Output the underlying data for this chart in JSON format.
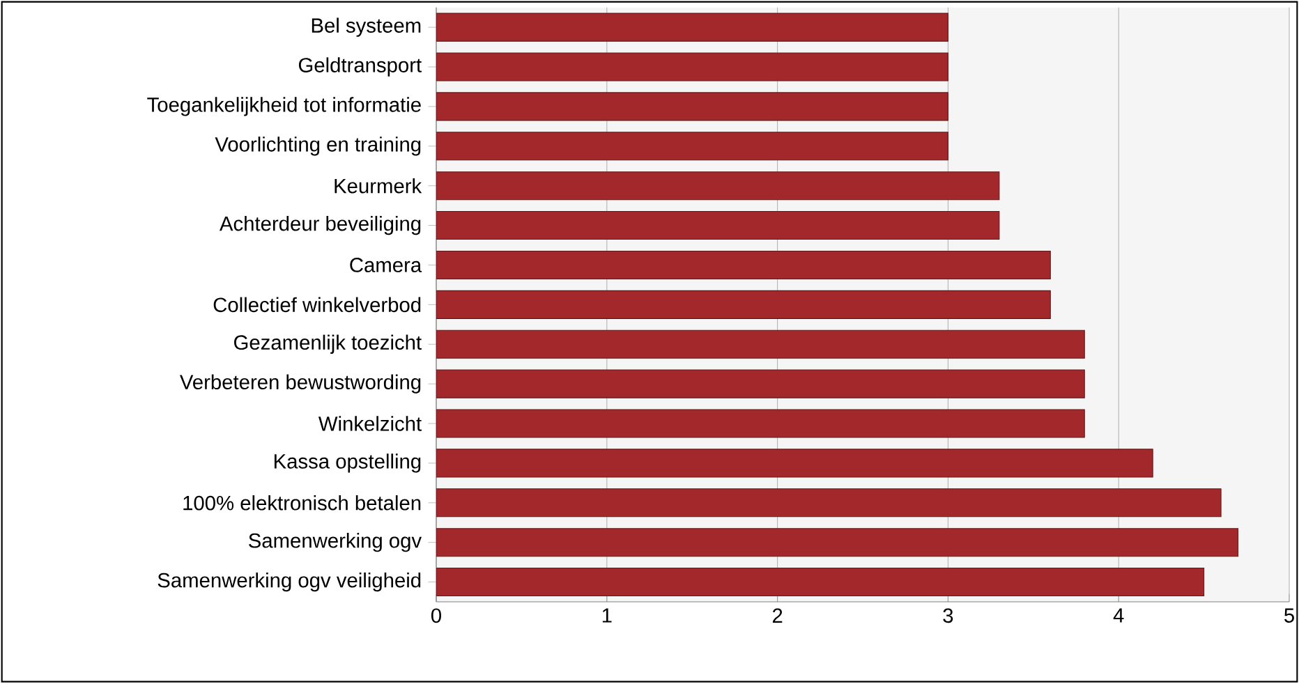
{
  "chart_data": {
    "type": "bar",
    "orientation": "horizontal",
    "categories": [
      "Bel systeem",
      "Geldtransport",
      "Toegankelijkheid tot informatie",
      "Voorlichting en training",
      "Keurmerk",
      "Achterdeur beveiliging",
      "Camera",
      "Collectief winkelverbod",
      "Gezamenlijk toezicht",
      "Verbeteren bewustwording",
      "Winkelzicht",
      "Kassa opstelling",
      "100% elektronisch betalen",
      "Samenwerking ogv",
      "Samenwerking ogv veiligheid"
    ],
    "values": [
      3.0,
      3.0,
      3.0,
      3.0,
      3.3,
      3.3,
      3.6,
      3.6,
      3.8,
      3.8,
      3.8,
      4.2,
      4.6,
      4.7,
      4.5
    ],
    "color": "#a3282b",
    "xlim": [
      0,
      5
    ],
    "xticks": [
      0,
      1,
      2,
      3,
      4,
      5
    ],
    "grid": "x"
  }
}
